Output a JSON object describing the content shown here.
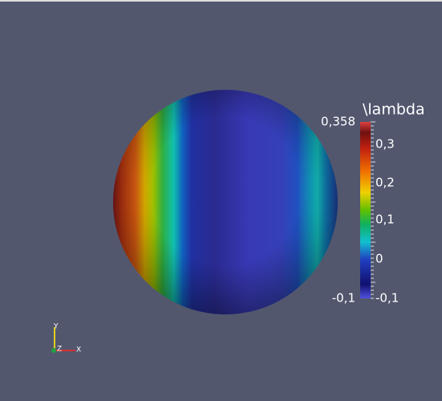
{
  "colorbar": {
    "title": "\\lambda",
    "max_label": "0,358",
    "min_label": "-0,1",
    "tick_labels": [
      "0,3",
      "0,2",
      "0,1",
      "0",
      "-0,1"
    ]
  },
  "axes": {
    "y": "Y",
    "z": "Z",
    "x": "X"
  }
}
